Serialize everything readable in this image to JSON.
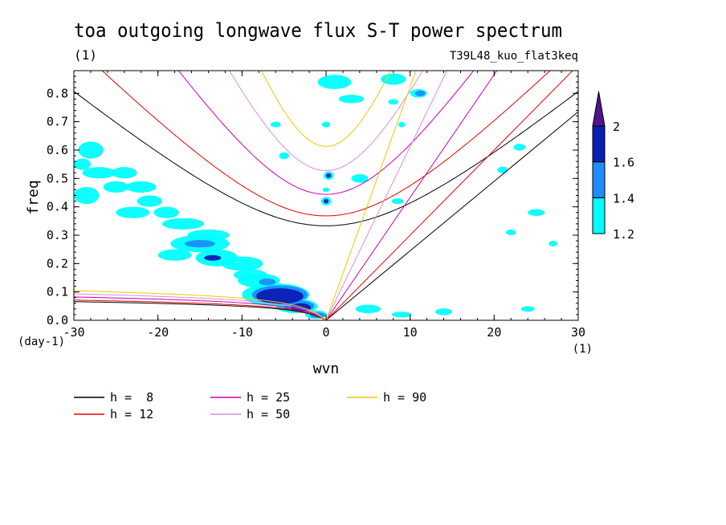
{
  "chart_data": {
    "type": "contour",
    "title": "toa outgoing longwave flux S-T power spectrum",
    "subtitle_left": "(1)",
    "subtitle_right": "T39L48_kuo_flat3keq",
    "xlabel": "wvn",
    "ylabel": "freq",
    "x_unit_label": "(1)",
    "y_unit_label": "(day-1)",
    "xlim": [
      -30,
      30
    ],
    "ylim": [
      0,
      0.88
    ],
    "xticks": [
      -30,
      -20,
      -10,
      0,
      10,
      20,
      30
    ],
    "xtick_labels": [
      "-30",
      "-20",
      "-10",
      "0",
      "10",
      "20",
      "30"
    ],
    "yticks": [
      0,
      0.1,
      0.2,
      0.3,
      0.4,
      0.5,
      0.6,
      0.7,
      0.8
    ],
    "ytick_labels": [
      "0.0",
      "0.1",
      "0.2",
      "0.3",
      "0.4",
      "0.5",
      "0.6",
      "0.7",
      "0.8"
    ],
    "colorbar": {
      "levels": [
        1.2,
        1.4,
        1.6,
        2
      ],
      "labels": [
        "1.2",
        "1.4",
        "1.6",
        "2"
      ],
      "colors": [
        "#00ffff",
        "#1e8cff",
        "#0a1eb4",
        "#50148c"
      ]
    },
    "dispersion_curves": [
      {
        "label": "h =  8",
        "h": 8,
        "color": "#000000"
      },
      {
        "label": "h = 12",
        "h": 12,
        "color": "#e60000"
      },
      {
        "label": "h = 25",
        "h": 25,
        "color": "#c800b4"
      },
      {
        "label": "h = 50",
        "h": 50,
        "color": "#dc8cdc"
      },
      {
        "label": "h = 90",
        "h": 90,
        "color": "#f0c800"
      }
    ],
    "kelvin_slopes": [
      0.0245,
      0.03,
      0.0433,
      0.0612,
      0.0822
    ],
    "ig_min_freq": [
      0.333,
      0.368,
      0.444,
      0.528,
      0.613
    ],
    "er_asymptote": [
      0.06,
      0.065,
      0.075,
      0.085,
      0.095
    ],
    "power_blobs": [
      {
        "x": -28,
        "y": 0.6,
        "rx": 1.5,
        "ry": 0.03,
        "level": 0
      },
      {
        "x": -29,
        "y": 0.55,
        "rx": 1.0,
        "ry": 0.02,
        "level": 0
      },
      {
        "x": -27,
        "y": 0.52,
        "rx": 2.0,
        "ry": 0.02,
        "level": 0
      },
      {
        "x": -24,
        "y": 0.52,
        "rx": 1.5,
        "ry": 0.02,
        "level": 0
      },
      {
        "x": -28.5,
        "y": 0.44,
        "rx": 1.5,
        "ry": 0.03,
        "level": 0
      },
      {
        "x": -25,
        "y": 0.47,
        "rx": 1.5,
        "ry": 0.02,
        "level": 0
      },
      {
        "x": -22,
        "y": 0.47,
        "rx": 1.8,
        "ry": 0.02,
        "level": 0
      },
      {
        "x": -21,
        "y": 0.42,
        "rx": 1.5,
        "ry": 0.02,
        "level": 0
      },
      {
        "x": -23,
        "y": 0.38,
        "rx": 2.0,
        "ry": 0.02,
        "level": 0
      },
      {
        "x": -19,
        "y": 0.38,
        "rx": 1.5,
        "ry": 0.02,
        "level": 0
      },
      {
        "x": -17,
        "y": 0.34,
        "rx": 2.5,
        "ry": 0.02,
        "level": 0
      },
      {
        "x": -14,
        "y": 0.3,
        "rx": 2.5,
        "ry": 0.02,
        "level": 0
      },
      {
        "x": -15,
        "y": 0.27,
        "rx": 3.5,
        "ry": 0.03,
        "level": 0
      },
      {
        "x": -15,
        "y": 0.27,
        "rx": 1.8,
        "ry": 0.013,
        "level": 1
      },
      {
        "x": -18,
        "y": 0.23,
        "rx": 2.0,
        "ry": 0.02,
        "level": 0
      },
      {
        "x": -13,
        "y": 0.22,
        "rx": 2.5,
        "ry": 0.03,
        "level": 0
      },
      {
        "x": -13.5,
        "y": 0.22,
        "rx": 1.0,
        "ry": 0.01,
        "level": 2
      },
      {
        "x": -10,
        "y": 0.2,
        "rx": 2.5,
        "ry": 0.025,
        "level": 0
      },
      {
        "x": -9,
        "y": 0.16,
        "rx": 2.0,
        "ry": 0.02,
        "level": 0
      },
      {
        "x": -8,
        "y": 0.14,
        "rx": 2.5,
        "ry": 0.025,
        "level": 0
      },
      {
        "x": -7,
        "y": 0.135,
        "rx": 1.0,
        "ry": 0.012,
        "level": 1
      },
      {
        "x": -6,
        "y": 0.09,
        "rx": 4.0,
        "ry": 0.04,
        "level": 0
      },
      {
        "x": -5.5,
        "y": 0.09,
        "rx": 3.3,
        "ry": 0.033,
        "level": 1
      },
      {
        "x": -5.5,
        "y": 0.085,
        "rx": 2.8,
        "ry": 0.028,
        "level": 2
      },
      {
        "x": -3.5,
        "y": 0.05,
        "rx": 2.5,
        "ry": 0.025,
        "level": 0
      },
      {
        "x": -3.2,
        "y": 0.05,
        "rx": 1.8,
        "ry": 0.02,
        "level": 1
      },
      {
        "x": -3.0,
        "y": 0.045,
        "rx": 1.2,
        "ry": 0.015,
        "level": 2
      },
      {
        "x": -1.2,
        "y": 0.02,
        "rx": 1.3,
        "ry": 0.015,
        "level": 0
      },
      {
        "x": -1.0,
        "y": 0.018,
        "rx": 0.9,
        "ry": 0.01,
        "level": 1
      },
      {
        "x": 0.3,
        "y": 0.51,
        "rx": 0.6,
        "ry": 0.015,
        "level": 0
      },
      {
        "x": 0.3,
        "y": 0.51,
        "rx": 0.3,
        "ry": 0.008,
        "level": 2
      },
      {
        "x": 0.0,
        "y": 0.42,
        "rx": 0.6,
        "ry": 0.015,
        "level": 0
      },
      {
        "x": 0.0,
        "y": 0.42,
        "rx": 0.3,
        "ry": 0.008,
        "level": 2
      },
      {
        "x": 0.0,
        "y": 0.46,
        "rx": 0.4,
        "ry": 0.008,
        "level": 0
      },
      {
        "x": 1.0,
        "y": 0.84,
        "rx": 2.0,
        "ry": 0.025,
        "level": 0
      },
      {
        "x": 3.0,
        "y": 0.78,
        "rx": 1.5,
        "ry": 0.015,
        "level": 0
      },
      {
        "x": 8.0,
        "y": 0.85,
        "rx": 1.5,
        "ry": 0.02,
        "level": 0
      },
      {
        "x": 11.0,
        "y": 0.8,
        "rx": 1.0,
        "ry": 0.015,
        "level": 0
      },
      {
        "x": 11.2,
        "y": 0.8,
        "rx": 0.6,
        "ry": 0.01,
        "level": 1
      },
      {
        "x": 8.0,
        "y": 0.77,
        "rx": 0.6,
        "ry": 0.01,
        "level": 0
      },
      {
        "x": 9.0,
        "y": 0.69,
        "rx": 0.4,
        "ry": 0.01,
        "level": 0
      },
      {
        "x": 23.0,
        "y": 0.61,
        "rx": 0.7,
        "ry": 0.012,
        "level": 0
      },
      {
        "x": 4.0,
        "y": 0.5,
        "rx": 1.0,
        "ry": 0.015,
        "level": 0
      },
      {
        "x": 8.5,
        "y": 0.42,
        "rx": 0.7,
        "ry": 0.01,
        "level": 0
      },
      {
        "x": 21.0,
        "y": 0.53,
        "rx": 0.6,
        "ry": 0.012,
        "level": 0
      },
      {
        "x": 25.0,
        "y": 0.38,
        "rx": 1.0,
        "ry": 0.012,
        "level": 0
      },
      {
        "x": 22.0,
        "y": 0.31,
        "rx": 0.6,
        "ry": 0.01,
        "level": 0
      },
      {
        "x": 27.0,
        "y": 0.27,
        "rx": 0.5,
        "ry": 0.01,
        "level": 0
      },
      {
        "x": 5.0,
        "y": 0.04,
        "rx": 1.5,
        "ry": 0.015,
        "level": 0
      },
      {
        "x": 9.0,
        "y": 0.02,
        "rx": 1.2,
        "ry": 0.01,
        "level": 0
      },
      {
        "x": 14.0,
        "y": 0.03,
        "rx": 1.0,
        "ry": 0.012,
        "level": 0
      },
      {
        "x": 24.0,
        "y": 0.04,
        "rx": 0.8,
        "ry": 0.01,
        "level": 0
      },
      {
        "x": -6.0,
        "y": 0.69,
        "rx": 0.6,
        "ry": 0.01,
        "level": 0
      },
      {
        "x": -5.0,
        "y": 0.58,
        "rx": 0.6,
        "ry": 0.012,
        "level": 0
      },
      {
        "x": 0.0,
        "y": 0.69,
        "rx": 0.5,
        "ry": 0.01,
        "level": 0
      }
    ]
  }
}
